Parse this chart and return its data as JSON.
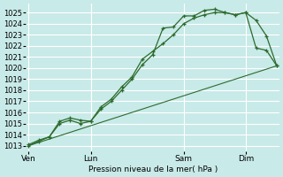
{
  "bg_color": "#c8eae8",
  "grid_color": "#ffffff",
  "line_color": "#2d6b2d",
  "xlabel_text": "Pression niveau de la mer( hPa )",
  "xtick_labels": [
    "Ven",
    "Lun",
    "Sam",
    "Dim"
  ],
  "xtick_positions": [
    0,
    48,
    120,
    168
  ],
  "ylim": [
    1012.5,
    1025.8
  ],
  "xlim": [
    -2,
    194
  ],
  "yticks": [
    1013,
    1014,
    1015,
    1016,
    1017,
    1018,
    1019,
    1020,
    1021,
    1022,
    1023,
    1024,
    1025
  ],
  "series1_x": [
    0,
    8,
    16,
    24,
    32,
    40,
    48,
    56,
    64,
    72,
    80,
    88,
    96,
    104,
    112,
    120,
    128,
    136,
    144,
    152,
    160,
    168,
    176,
    184,
    192
  ],
  "series1_y": [
    1013.0,
    1013.4,
    1013.8,
    1015.2,
    1015.5,
    1015.3,
    1015.2,
    1016.5,
    1017.2,
    1018.3,
    1019.2,
    1020.8,
    1021.5,
    1022.2,
    1023.0,
    1024.0,
    1024.5,
    1024.8,
    1025.0,
    1025.0,
    1024.8,
    1025.0,
    1024.3,
    1022.9,
    1020.2
  ],
  "series2_x": [
    0,
    8,
    16,
    24,
    32,
    40,
    48,
    56,
    64,
    72,
    80,
    88,
    96,
    104,
    112,
    120,
    128,
    136,
    144,
    152,
    160,
    168,
    176,
    184,
    192
  ],
  "series2_y": [
    1013.1,
    1013.5,
    1013.8,
    1015.0,
    1015.3,
    1015.0,
    1015.2,
    1016.3,
    1017.0,
    1018.0,
    1019.0,
    1020.3,
    1021.2,
    1023.6,
    1023.7,
    1024.7,
    1024.7,
    1025.2,
    1025.3,
    1025.0,
    1024.8,
    1025.0,
    1021.8,
    1021.6,
    1020.2
  ],
  "series3_x": [
    0,
    192
  ],
  "series3_y": [
    1013.0,
    1020.2
  ],
  "vline_positions": [
    48,
    120,
    168
  ]
}
